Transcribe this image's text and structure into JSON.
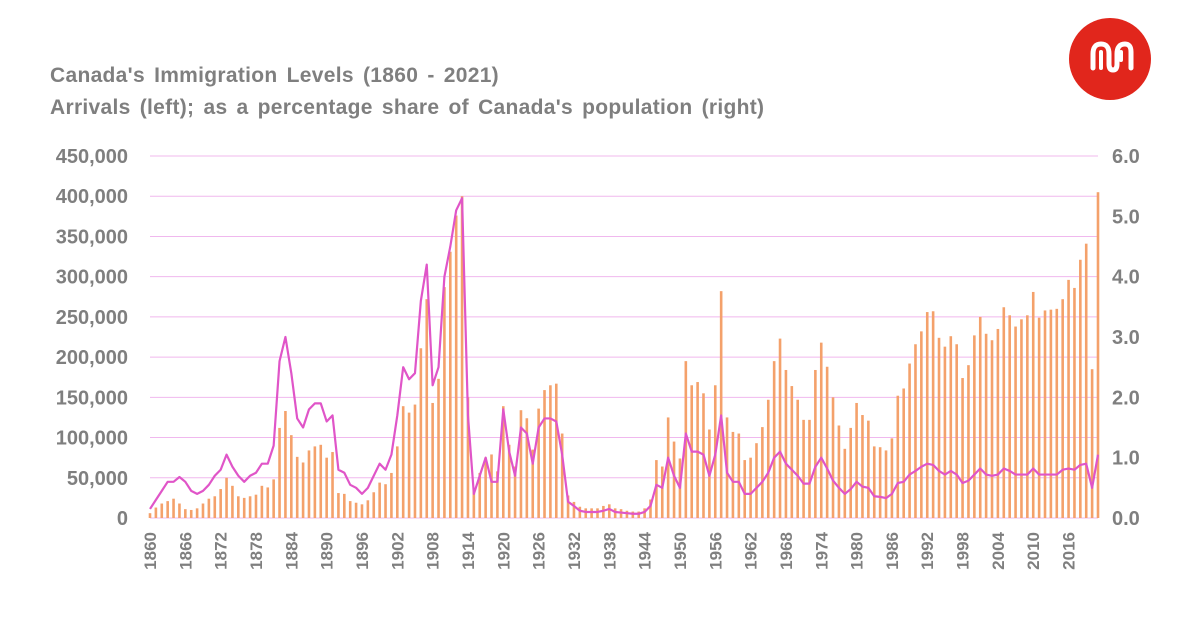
{
  "brand": {
    "logo_icon": "brand-logo-icon",
    "color": "#e1261c"
  },
  "chart_data": {
    "type": "bar",
    "title": "Canada's  Immigration  Levels (1860 - 2021)",
    "subtitle": "Arrivals  (left); as a percentage  share  of Canada's  population  (right)",
    "xlabel": "",
    "ylabel": "",
    "x_ticks": [
      "1860",
      "1866",
      "1872",
      "1878",
      "1884",
      "1890",
      "1896",
      "1902",
      "1908",
      "1914",
      "1920",
      "1926",
      "1932",
      "1938",
      "1944",
      "1950",
      "1956",
      "1962",
      "1968",
      "1974",
      "1980",
      "1986",
      "1992",
      "1998",
      "2004",
      "2010",
      "2016"
    ],
    "y_left_ticks": [
      "0",
      "50,000",
      "100,000",
      "150,000",
      "200,000",
      "250,000",
      "300,000",
      "350,000",
      "400,000",
      "450,000"
    ],
    "y_right_ticks": [
      "0.0",
      "1.0",
      "2.0",
      "3.0",
      "4.0",
      "5.0",
      "6.0"
    ],
    "ylim_left": [
      0,
      450000
    ],
    "ylim_right": [
      0,
      6.0
    ],
    "grid": true,
    "colors": {
      "bars": "#f4a16b",
      "line": "#e055c8",
      "grid": "#f0b8ee",
      "text": "#7f7f7f"
    },
    "series": [
      {
        "type": "bar",
        "axis": "left",
        "x_start": 1860,
        "values": [
          6000,
          13000,
          18000,
          21000,
          24000,
          18000,
          11000,
          10000,
          12000,
          18000,
          24000,
          27000,
          36000,
          50000,
          40000,
          27000,
          25000,
          27000,
          29000,
          40000,
          38000,
          48000,
          112000,
          133000,
          103000,
          76000,
          69000,
          84000,
          89000,
          91000,
          75000,
          82000,
          31000,
          30000,
          21000,
          19000,
          17000,
          22000,
          32000,
          44000,
          42000,
          56000,
          89000,
          139000,
          131000,
          141000,
          211000,
          272000,
          143000,
          173000,
          287000,
          331000,
          376000,
          400000,
          150000,
          36000,
          56000,
          75000,
          79000,
          58000,
          139000,
          91000,
          64000,
          134000,
          124000,
          85000,
          136000,
          159000,
          165000,
          167000,
          105000,
          28000,
          20000,
          14000,
          12000,
          12000,
          12000,
          15000,
          17000,
          12000,
          11000,
          9000,
          8000,
          8000,
          12000,
          23000,
          72000,
          64000,
          125000,
          95000,
          74000,
          195000,
          165000,
          169000,
          155000,
          110000,
          165000,
          282000,
          125000,
          107000,
          105000,
          72000,
          75000,
          93000,
          113000,
          147000,
          195000,
          223000,
          184000,
          164000,
          147000,
          122000,
          122000,
          184000,
          218000,
          188000,
          150000,
          115000,
          86000,
          112000,
          143000,
          128000,
          121000,
          89000,
          88000,
          84000,
          99000,
          152000,
          161000,
          192000,
          216000,
          232000,
          256000,
          257000,
          224000,
          213000,
          226000,
          216000,
          174000,
          190000,
          227000,
          250000,
          229000,
          221000,
          235000,
          262000,
          252000,
          238000,
          247000,
          252000,
          281000,
          249000,
          258000,
          259000,
          260000,
          272000,
          296000,
          286000,
          321000,
          341000,
          185000,
          405000
        ]
      },
      {
        "type": "line",
        "axis": "right",
        "points": [
          [
            1860,
            0.15
          ],
          [
            1861,
            0.3
          ],
          [
            1862,
            0.45
          ],
          [
            1863,
            0.6
          ],
          [
            1864,
            0.6
          ],
          [
            1865,
            0.68
          ],
          [
            1866,
            0.6
          ],
          [
            1867,
            0.45
          ],
          [
            1868,
            0.4
          ],
          [
            1869,
            0.45
          ],
          [
            1870,
            0.55
          ],
          [
            1871,
            0.7
          ],
          [
            1872,
            0.8
          ],
          [
            1873,
            1.05
          ],
          [
            1874,
            0.85
          ],
          [
            1875,
            0.7
          ],
          [
            1876,
            0.6
          ],
          [
            1877,
            0.7
          ],
          [
            1878,
            0.75
          ],
          [
            1879,
            0.9
          ],
          [
            1880,
            0.9
          ],
          [
            1881,
            1.2
          ],
          [
            1882,
            2.6
          ],
          [
            1883,
            3.0
          ],
          [
            1884,
            2.4
          ],
          [
            1885,
            1.65
          ],
          [
            1886,
            1.5
          ],
          [
            1887,
            1.8
          ],
          [
            1888,
            1.9
          ],
          [
            1889,
            1.9
          ],
          [
            1890,
            1.6
          ],
          [
            1891,
            1.7
          ],
          [
            1892,
            0.8
          ],
          [
            1893,
            0.75
          ],
          [
            1894,
            0.55
          ],
          [
            1895,
            0.5
          ],
          [
            1896,
            0.4
          ],
          [
            1897,
            0.5
          ],
          [
            1898,
            0.7
          ],
          [
            1899,
            0.9
          ],
          [
            1900,
            0.8
          ],
          [
            1901,
            1.05
          ],
          [
            1902,
            1.7
          ],
          [
            1903,
            2.5
          ],
          [
            1904,
            2.3
          ],
          [
            1905,
            2.4
          ],
          [
            1906,
            3.6
          ],
          [
            1907,
            4.2
          ],
          [
            1908,
            2.2
          ],
          [
            1909,
            2.5
          ],
          [
            1910,
            4.0
          ],
          [
            1911,
            4.5
          ],
          [
            1912,
            5.1
          ],
          [
            1913,
            5.3
          ],
          [
            1914,
            1.7
          ],
          [
            1915,
            0.4
          ],
          [
            1916,
            0.7
          ],
          [
            1917,
            1.0
          ],
          [
            1918,
            0.6
          ],
          [
            1919,
            0.6
          ],
          [
            1920,
            1.8
          ],
          [
            1921,
            1.1
          ],
          [
            1922,
            0.7
          ],
          [
            1923,
            1.5
          ],
          [
            1924,
            1.4
          ],
          [
            1925,
            0.9
          ],
          [
            1926,
            1.5
          ],
          [
            1927,
            1.65
          ],
          [
            1928,
            1.65
          ],
          [
            1929,
            1.6
          ],
          [
            1930,
            1.05
          ],
          [
            1931,
            0.27
          ],
          [
            1932,
            0.2
          ],
          [
            1933,
            0.12
          ],
          [
            1934,
            0.1
          ],
          [
            1935,
            0.1
          ],
          [
            1936,
            0.1
          ],
          [
            1937,
            0.12
          ],
          [
            1938,
            0.15
          ],
          [
            1939,
            0.1
          ],
          [
            1940,
            0.09
          ],
          [
            1941,
            0.08
          ],
          [
            1942,
            0.07
          ],
          [
            1943,
            0.07
          ],
          [
            1944,
            0.1
          ],
          [
            1945,
            0.2
          ],
          [
            1946,
            0.55
          ],
          [
            1947,
            0.5
          ],
          [
            1948,
            1.0
          ],
          [
            1949,
            0.7
          ],
          [
            1950,
            0.5
          ],
          [
            1951,
            1.4
          ],
          [
            1952,
            1.1
          ],
          [
            1953,
            1.1
          ],
          [
            1954,
            1.05
          ],
          [
            1955,
            0.7
          ],
          [
            1956,
            1.05
          ],
          [
            1957,
            1.7
          ],
          [
            1958,
            0.75
          ],
          [
            1959,
            0.6
          ],
          [
            1960,
            0.6
          ],
          [
            1961,
            0.4
          ],
          [
            1962,
            0.4
          ],
          [
            1963,
            0.5
          ],
          [
            1964,
            0.6
          ],
          [
            1965,
            0.75
          ],
          [
            1966,
            1.0
          ],
          [
            1967,
            1.1
          ],
          [
            1968,
            0.9
          ],
          [
            1969,
            0.8
          ],
          [
            1970,
            0.7
          ],
          [
            1971,
            0.57
          ],
          [
            1972,
            0.57
          ],
          [
            1973,
            0.85
          ],
          [
            1974,
            1.0
          ],
          [
            1975,
            0.82
          ],
          [
            1976,
            0.62
          ],
          [
            1977,
            0.5
          ],
          [
            1978,
            0.4
          ],
          [
            1979,
            0.48
          ],
          [
            1980,
            0.6
          ],
          [
            1981,
            0.52
          ],
          [
            1982,
            0.5
          ],
          [
            1983,
            0.36
          ],
          [
            1984,
            0.35
          ],
          [
            1985,
            0.33
          ],
          [
            1986,
            0.4
          ],
          [
            1987,
            0.58
          ],
          [
            1988,
            0.6
          ],
          [
            1989,
            0.72
          ],
          [
            1990,
            0.78
          ],
          [
            1991,
            0.85
          ],
          [
            1992,
            0.9
          ],
          [
            1993,
            0.88
          ],
          [
            1994,
            0.78
          ],
          [
            1995,
            0.72
          ],
          [
            1996,
            0.78
          ],
          [
            1997,
            0.72
          ],
          [
            1998,
            0.58
          ],
          [
            1999,
            0.62
          ],
          [
            2000,
            0.72
          ],
          [
            2001,
            0.82
          ],
          [
            2002,
            0.72
          ],
          [
            2003,
            0.7
          ],
          [
            2004,
            0.72
          ],
          [
            2005,
            0.82
          ],
          [
            2006,
            0.78
          ],
          [
            2007,
            0.72
          ],
          [
            2008,
            0.72
          ],
          [
            2009,
            0.72
          ],
          [
            2010,
            0.82
          ],
          [
            2011,
            0.72
          ],
          [
            2012,
            0.72
          ],
          [
            2013,
            0.72
          ],
          [
            2014,
            0.72
          ],
          [
            2015,
            0.8
          ],
          [
            2016,
            0.82
          ],
          [
            2017,
            0.8
          ],
          [
            2018,
            0.88
          ],
          [
            2019,
            0.9
          ],
          [
            2020,
            0.5
          ],
          [
            2021,
            1.05
          ]
        ]
      }
    ]
  }
}
